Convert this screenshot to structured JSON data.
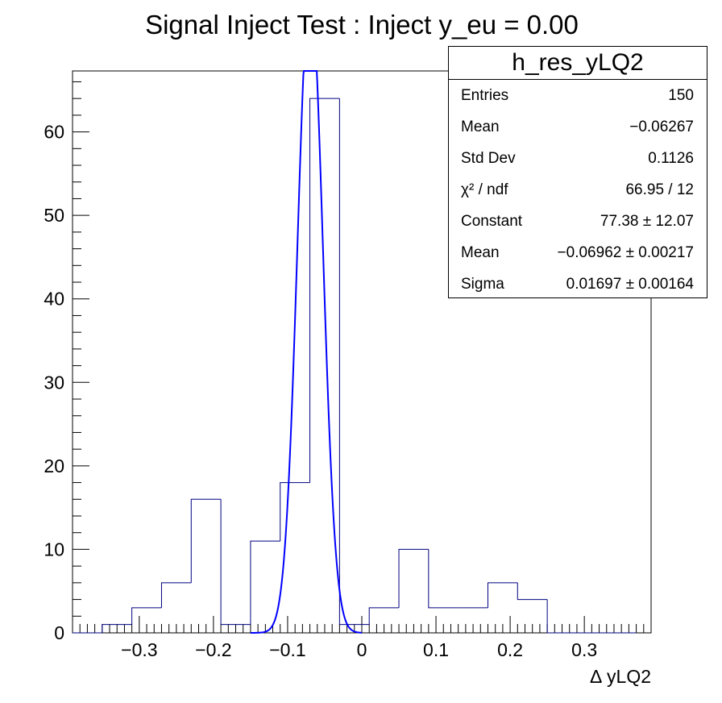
{
  "chart_data": {
    "type": "bar",
    "title": "Signal Inject Test : Inject y_eu = 0.00",
    "xlabel": "∆ yLQ2",
    "ylabel": "",
    "xlim": [
      -0.39,
      0.39
    ],
    "ylim": [
      0,
      67.3
    ],
    "x_ticks": [
      {
        "value": -0.3,
        "label": "−0.3"
      },
      {
        "value": -0.2,
        "label": "−0.2"
      },
      {
        "value": -0.1,
        "label": "−0.1"
      },
      {
        "value": 0,
        "label": "0"
      },
      {
        "value": 0.1,
        "label": "0.1"
      },
      {
        "value": 0.2,
        "label": "0.2"
      },
      {
        "value": 0.3,
        "label": "0.3"
      }
    ],
    "y_ticks": [
      {
        "value": 0,
        "label": "0"
      },
      {
        "value": 10,
        "label": "10"
      },
      {
        "value": 20,
        "label": "20"
      },
      {
        "value": 30,
        "label": "30"
      },
      {
        "value": 40,
        "label": "40"
      },
      {
        "value": 50,
        "label": "50"
      },
      {
        "value": 60,
        "label": "60"
      }
    ],
    "histogram": {
      "bin_edges": [
        -0.39,
        -0.35,
        -0.31,
        -0.27,
        -0.23,
        -0.19,
        -0.15,
        -0.11,
        -0.07,
        -0.03,
        0.01,
        0.05,
        0.09,
        0.13,
        0.17,
        0.21,
        0.25,
        0.29,
        0.33,
        0.37
      ],
      "counts": [
        0,
        1,
        3,
        6,
        16,
        1,
        11,
        18,
        64,
        1,
        3,
        10,
        3,
        3,
        6,
        4,
        0,
        0,
        0
      ],
      "color": "#000080"
    },
    "fit": {
      "function": "gaus",
      "constant": 77.38,
      "mean": -0.06962,
      "sigma": 0.01697,
      "range": [
        -0.15,
        0.0
      ],
      "color": "#0000ff"
    },
    "grid": false,
    "legend_placement": "top-right"
  },
  "stats": {
    "title": "h_res_yLQ2",
    "rows": [
      {
        "label": "Entries",
        "value": "150"
      },
      {
        "label": "Mean",
        "value": "−0.06267"
      },
      {
        "label": "Std Dev",
        "value": "0.1126"
      },
      {
        "label": "χ² / ndf",
        "value": "66.95 / 12"
      },
      {
        "label": "Constant",
        "value": "77.38 ± 12.07"
      },
      {
        "label": "Mean",
        "value": "−0.06962 ± 0.00217"
      },
      {
        "label": "Sigma",
        "value": "0.01697 ± 0.00164"
      }
    ]
  }
}
